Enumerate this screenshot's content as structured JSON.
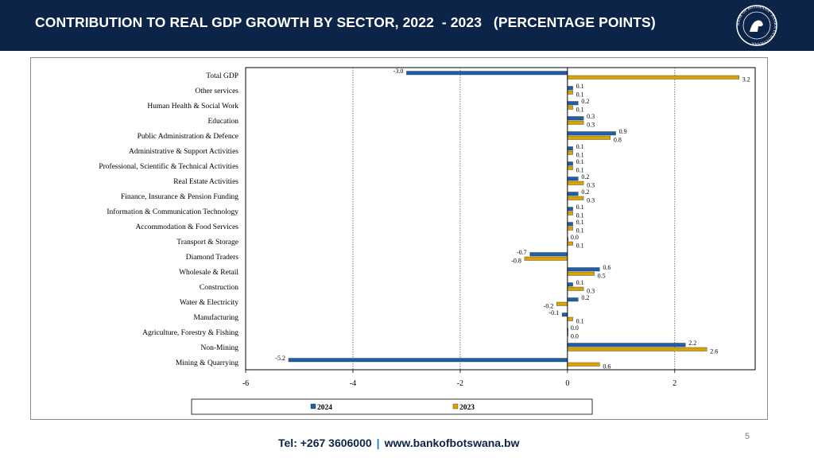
{
  "header": {
    "title": "CONTRIBUTION TO REAL GDP GROWTH BY SECTOR, 2022  - 2023   (PERCENTAGE POINTS)",
    "logo_text": "BANK OF BOTSWANA · BANKA YA BOTSWANA"
  },
  "colors": {
    "header_bg": "#0b2447",
    "series_2024": "#1f5fa8",
    "series_2023": "#d9a400",
    "footer_sep": "#1f7ad1"
  },
  "chart_data": {
    "type": "bar",
    "orientation": "horizontal",
    "title": "",
    "xlabel": "",
    "ylabel": "",
    "xlim": [
      -6,
      3.5
    ],
    "xticks": [
      -6,
      -4,
      -2,
      0,
      2
    ],
    "gridlines_at": [
      -4,
      -2,
      2
    ],
    "categories": [
      "Total GDP",
      "Other services",
      "Human Health & Social Work",
      "Education",
      "Public Administration & Defence",
      "Administrative & Support Activities",
      "Professional, Scientific & Technical Activities",
      "Real Estate Activities",
      "Finance, Insurance & Pension Funding",
      "Information & Communication Technology",
      "Accommodation & Food Services",
      "Transport & Storage",
      "Diamond Traders",
      "Wholesale & Retail",
      "Construction",
      "Water & Electricity",
      "Manufacturing",
      "Agriculture, Forestry & Fishing",
      "Non-Mining",
      "Mining & Quarrying"
    ],
    "series": [
      {
        "name": "2024",
        "values": [
          -3.0,
          0.1,
          0.2,
          0.3,
          0.9,
          0.1,
          0.1,
          0.2,
          0.2,
          0.1,
          0.1,
          0.0,
          -0.7,
          0.6,
          0.1,
          0.2,
          -0.1,
          0.0,
          2.2,
          -5.2
        ],
        "labels": [
          "-3.0",
          "0.1",
          "0.2",
          "0.3",
          "0.9",
          "0.1",
          "0.1",
          "0.2",
          "0.2",
          "0.1",
          "0.1",
          "0.0",
          "-0.7",
          "0.6",
          "0.1",
          "0.2",
          "-0.1",
          "0.0",
          "2.2",
          "-5.2"
        ]
      },
      {
        "name": "2023",
        "values": [
          3.2,
          0.1,
          0.1,
          0.3,
          0.8,
          0.1,
          0.1,
          0.3,
          0.3,
          0.1,
          0.1,
          0.1,
          -0.8,
          0.5,
          0.3,
          -0.2,
          0.1,
          0.0,
          2.6,
          0.6
        ],
        "labels": [
          "3.2",
          "0.1",
          "0.1",
          "0.3",
          "0.8",
          "0.1",
          "0.1",
          "0.3",
          "0.3",
          "0.1",
          "0.1",
          "0.1",
          "-0.8",
          "0.5",
          "0.3",
          "-0.2",
          "0.1",
          "0.0",
          "2.6",
          "0.6"
        ]
      }
    ],
    "legend": {
      "position": "bottom",
      "entries": [
        "2024",
        "2023"
      ]
    }
  },
  "footer": {
    "tel": "Tel: +267 3606000",
    "separator": "|",
    "website": "www.bankofbotswana.bw"
  },
  "slide_number": "5"
}
